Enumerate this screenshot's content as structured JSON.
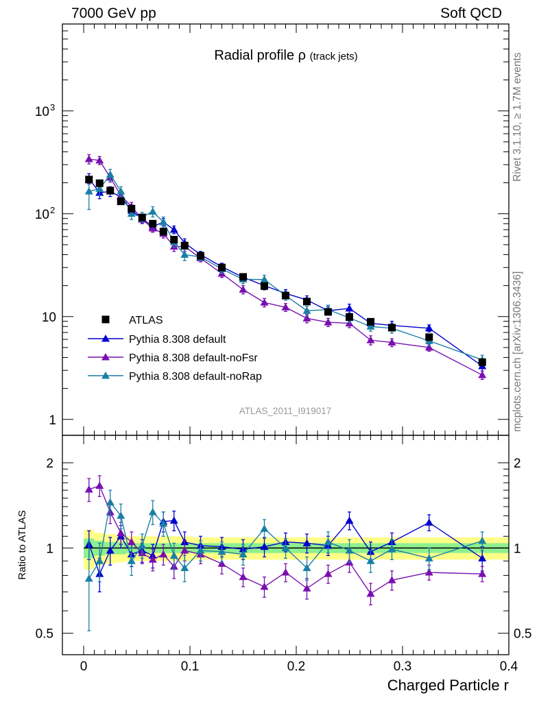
{
  "header": {
    "left": "7000 GeV pp",
    "right": "Soft QCD"
  },
  "side_labels": {
    "top": "Rivet 3.1.10, ≥ 1.7M events",
    "bottom": "mcplots.cern.ch [arXiv:1306.3436]"
  },
  "watermark": "ATLAS_2011_I919017",
  "colors": {
    "ATLAS": "#000000",
    "default": "#0000cc",
    "noFsr": "#7a0fb0",
    "noRap": "#1a7fa6",
    "band_outer": "#ffff88",
    "band_inner": "#8ef08e"
  },
  "chart_data": [
    {
      "type": "scatter",
      "title": "Radial profile",
      "title_symbol": "ρ",
      "title_suffix": "(track jets)",
      "xlabel": "Charged Particle r",
      "ylabel": "",
      "yscale": "log",
      "xlim": [
        -0.02,
        0.4
      ],
      "ylim": [
        0.7,
        7000
      ],
      "y_tick_labels": [
        "1",
        "10",
        "10",
        "10"
      ],
      "y_tick_exponents": [
        "",
        "",
        "2",
        "3"
      ],
      "legend": {
        "position": "middle-left",
        "entries": [
          "ATLAS",
          "Pythia 8.308 default",
          "Pythia 8.308 default-noFsr",
          "Pythia 8.308 default-noRap"
        ]
      },
      "x": [
        0.005,
        0.015,
        0.025,
        0.035,
        0.045,
        0.055,
        0.065,
        0.075,
        0.085,
        0.095,
        0.11,
        0.13,
        0.15,
        0.17,
        0.19,
        0.21,
        0.23,
        0.25,
        0.27,
        0.29,
        0.325,
        0.375
      ],
      "series": [
        {
          "name": "ATLAS",
          "marker": "square",
          "values": [
            215,
            198,
            168,
            132,
            112,
            92,
            80,
            67,
            56,
            49,
            39,
            30,
            24.3,
            19.8,
            16,
            14,
            11.1,
            9.9,
            8.9,
            7.8,
            6.3,
            3.6
          ]
        },
        {
          "name": "Pythia 8.308 default",
          "marker": "triangle",
          "values": [
            220,
            160,
            165,
            145,
            107,
            90,
            75,
            83,
            70,
            52,
            40,
            30.5,
            24.1,
            20.0,
            16.8,
            14.5,
            11.4,
            12.0,
            8.6,
            8.2,
            7.7,
            3.3
          ],
          "errors": [
            25,
            20,
            18,
            12,
            10,
            8,
            7,
            7,
            6,
            5,
            3,
            2.5,
            2,
            1.8,
            1.5,
            1.4,
            1.1,
            1.2,
            0.9,
            0.8,
            0.6,
            0.35
          ]
        },
        {
          "name": "Pythia 8.308 default-noFsr",
          "marker": "triangle",
          "values": [
            340,
            330,
            225,
            150,
            118,
            88,
            72,
            64,
            48,
            48,
            37,
            26.2,
            18.3,
            13.7,
            12.3,
            9.6,
            8.8,
            8.6,
            5.9,
            5.6,
            5.0,
            2.7
          ],
          "errors": [
            35,
            30,
            22,
            14,
            11,
            8,
            6,
            6,
            5,
            5,
            3,
            2.2,
            1.7,
            1.3,
            1.1,
            0.9,
            0.8,
            0.8,
            0.6,
            0.5,
            0.4,
            0.25
          ]
        },
        {
          "name": "Pythia 8.308 default-noRap",
          "marker": "triangle",
          "values": [
            165,
            175,
            240,
            165,
            100,
            93,
            105,
            83,
            53,
            40,
            38,
            29,
            23,
            22.9,
            16,
            11.4,
            11.7,
            9.7,
            8.0,
            7.7,
            5.8,
            3.8
          ],
          "errors": [
            55,
            25,
            30,
            18,
            12,
            10,
            12,
            10,
            6,
            5,
            3,
            2.6,
            2.1,
            2.3,
            1.6,
            1.2,
            1.2,
            1.0,
            0.8,
            0.8,
            0.6,
            0.4
          ]
        }
      ]
    },
    {
      "type": "scatter",
      "title": "",
      "xlabel": "Charged Particle r",
      "ylabel": "Ratio to ATLAS",
      "yscale": "log",
      "xlim": [
        -0.02,
        0.4
      ],
      "ylim": [
        0.42,
        2.5
      ],
      "y_tick_labels": [
        "0.5",
        "1",
        "2"
      ],
      "x_tick_labels": [
        "0",
        "0.1",
        "0.2",
        "0.3",
        "0.4"
      ],
      "x": [
        0.005,
        0.015,
        0.025,
        0.035,
        0.045,
        0.055,
        0.065,
        0.075,
        0.085,
        0.095,
        0.11,
        0.13,
        0.15,
        0.17,
        0.19,
        0.21,
        0.23,
        0.25,
        0.27,
        0.29,
        0.325,
        0.375
      ],
      "data_uncertainty": {
        "outer": [
          0.16,
          0.13,
          0.12,
          0.11,
          0.1,
          0.1,
          0.1,
          0.1,
          0.1,
          0.1,
          0.09,
          0.09,
          0.09,
          0.09,
          0.09,
          0.09,
          0.09,
          0.09,
          0.09,
          0.09,
          0.09,
          0.09
        ],
        "inner": [
          0.08,
          0.06,
          0.05,
          0.05,
          0.04,
          0.04,
          0.04,
          0.04,
          0.04,
          0.04,
          0.04,
          0.04,
          0.04,
          0.04,
          0.04,
          0.04,
          0.04,
          0.04,
          0.04,
          0.04,
          0.04,
          0.04
        ]
      },
      "series": [
        {
          "name": "Pythia 8.308 default",
          "values": [
            1.03,
            0.81,
            0.98,
            1.1,
            0.95,
            0.98,
            0.94,
            1.24,
            1.25,
            1.05,
            1.02,
            1.01,
            0.99,
            1.01,
            1.05,
            1.04,
            1.02,
            1.25,
            0.97,
            1.05,
            1.23,
            0.92
          ],
          "errors": [
            0.12,
            0.11,
            0.11,
            0.1,
            0.09,
            0.09,
            0.09,
            0.1,
            0.1,
            0.09,
            0.08,
            0.08,
            0.08,
            0.08,
            0.08,
            0.08,
            0.08,
            0.09,
            0.08,
            0.08,
            0.08,
            0.09
          ]
        },
        {
          "name": "Pythia 8.308 default-noFsr",
          "values": [
            1.61,
            1.66,
            1.34,
            1.13,
            1.05,
            0.96,
            0.91,
            0.95,
            0.86,
            0.98,
            0.95,
            0.88,
            0.79,
            0.73,
            0.82,
            0.72,
            0.81,
            0.89,
            0.69,
            0.77,
            0.82,
            0.81
          ],
          "errors": [
            0.15,
            0.14,
            0.12,
            0.1,
            0.09,
            0.08,
            0.08,
            0.08,
            0.08,
            0.08,
            0.07,
            0.07,
            0.06,
            0.06,
            0.06,
            0.06,
            0.06,
            0.07,
            0.06,
            0.06,
            0.05,
            0.05
          ]
        },
        {
          "name": "Pythia 8.308 default-noRap",
          "values": [
            0.78,
            0.9,
            1.45,
            1.3,
            0.9,
            1.02,
            1.34,
            1.22,
            0.94,
            0.85,
            0.98,
            0.97,
            0.95,
            1.17,
            1.0,
            0.85,
            1.05,
            0.98,
            0.9,
            0.99,
            0.92,
            1.06
          ],
          "errors": [
            0.27,
            0.14,
            0.15,
            0.13,
            0.1,
            0.1,
            0.13,
            0.12,
            0.1,
            0.09,
            0.08,
            0.08,
            0.08,
            0.09,
            0.08,
            0.08,
            0.09,
            0.09,
            0.08,
            0.08,
            0.08,
            0.08
          ]
        }
      ]
    }
  ]
}
